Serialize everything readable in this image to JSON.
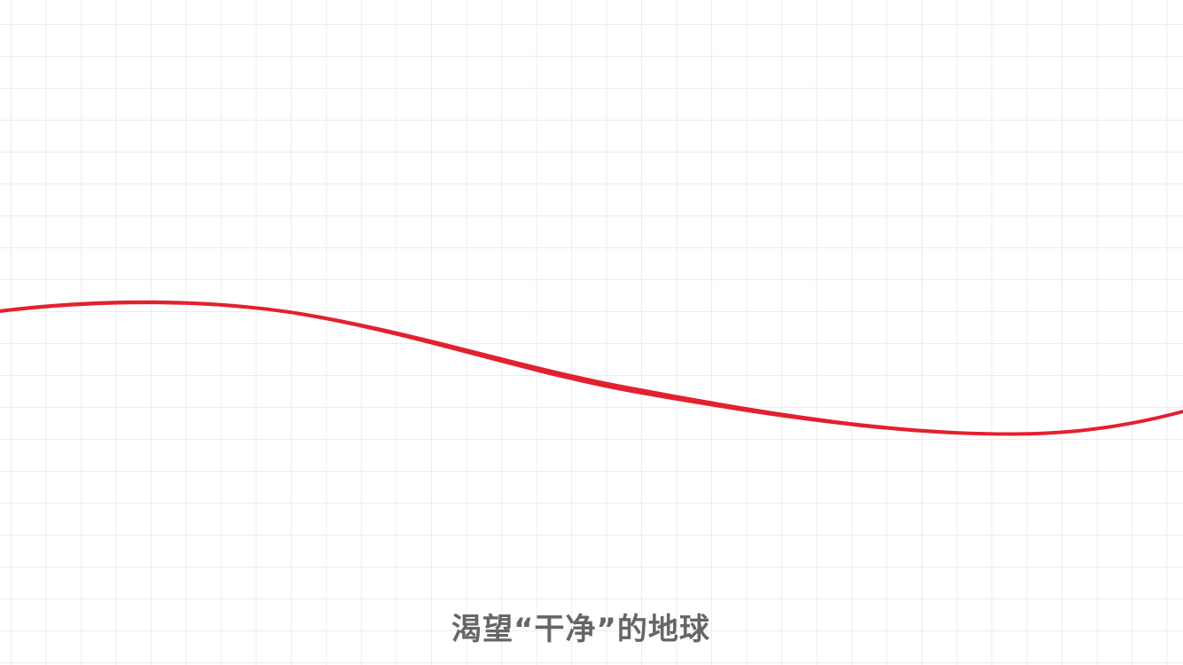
{
  "caption": {
    "text": "渴望“干净”的地球",
    "color": "#666666"
  },
  "colors": {
    "background": "#ffffff",
    "grid": "#ececec",
    "wave": "#e3202f"
  }
}
